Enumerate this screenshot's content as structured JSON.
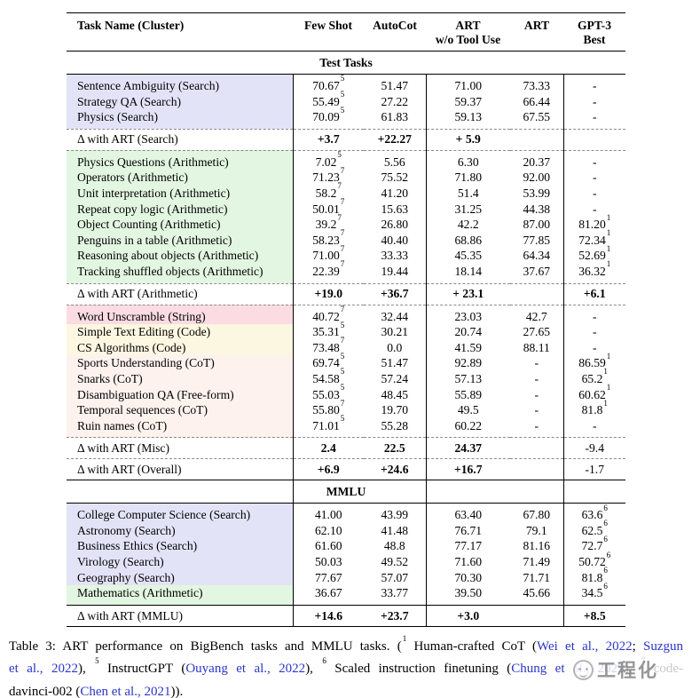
{
  "colors": {
    "search_highlight": "#e3e3f8",
    "arith_highlight": "#e2f6e1",
    "string_highlight": "#fbdce2",
    "code_highlight": "#fcf7e1",
    "cot_highlight": "#fdf2ee",
    "link": "#2b35c8",
    "dash_rule": "#8a8a8a"
  },
  "header": {
    "columns": [
      {
        "label": "Task Name (Cluster)"
      },
      {
        "label": "Few Shot"
      },
      {
        "label": "AutoCot"
      },
      {
        "label": "ART",
        "label2": "w/o Tool Use"
      },
      {
        "label": "ART"
      },
      {
        "label": "GPT-3",
        "label2": "Best"
      }
    ]
  },
  "sections": [
    {
      "type": "band",
      "label": "Test Tasks",
      "dividers": false,
      "rule_above": "solid"
    },
    {
      "type": "rows",
      "rule_above": "solid",
      "rows": [
        {
          "task": "Sentence Ambiguity (Search)",
          "bg": "search",
          "cells": [
            {
              "v": "70.67",
              "sup": "5"
            },
            {
              "v": "51.47"
            },
            {
              "v": "71.00"
            },
            {
              "v": "73.33"
            },
            {
              "v": "-"
            }
          ]
        },
        {
          "task": "Strategy QA (Search)",
          "bg": "search",
          "cells": [
            {
              "v": "55.49",
              "sup": "5"
            },
            {
              "v": "27.22"
            },
            {
              "v": "59.37"
            },
            {
              "v": "66.44"
            },
            {
              "v": "-"
            }
          ]
        },
        {
          "task": "Physics (Search)",
          "bg": "search",
          "cells": [
            {
              "v": "70.09",
              "sup": "5"
            },
            {
              "v": "61.83"
            },
            {
              "v": "59.13"
            },
            {
              "v": "67.55"
            },
            {
              "v": "-"
            }
          ]
        }
      ]
    },
    {
      "type": "delta",
      "label": "Δ with ART (Search)",
      "rule_above": "dash",
      "cells": [
        {
          "v": "+3.7"
        },
        {
          "v": "+22.27"
        },
        {
          "v": "+ 5.9"
        },
        {
          "v": ""
        },
        {
          "v": ""
        }
      ]
    },
    {
      "type": "rows",
      "rule_above": "dash",
      "rows": [
        {
          "task": "Physics Questions (Arithmetic)",
          "bg": "arith",
          "cells": [
            {
              "v": "7.02",
              "sup": "5"
            },
            {
              "v": "5.56"
            },
            {
              "v": "6.30"
            },
            {
              "v": "20.37"
            },
            {
              "v": "-"
            }
          ]
        },
        {
          "task": "Operators (Arithmetic)",
          "bg": "arith",
          "cells": [
            {
              "v": "71.23",
              "sup": "7"
            },
            {
              "v": "75.52"
            },
            {
              "v": "71.80"
            },
            {
              "v": "92.00"
            },
            {
              "v": "-"
            }
          ]
        },
        {
          "task": "Unit interpretation (Arithmetic)",
          "bg": "arith",
          "cells": [
            {
              "v": "58.2",
              "sup": "7"
            },
            {
              "v": "41.20"
            },
            {
              "v": "51.4"
            },
            {
              "v": "53.99"
            },
            {
              "v": "-"
            }
          ]
        },
        {
          "task": "Repeat copy logic (Arithmetic)",
          "bg": "arith",
          "cells": [
            {
              "v": "50.01",
              "sup": "7"
            },
            {
              "v": "15.63"
            },
            {
              "v": "31.25"
            },
            {
              "v": "44.38"
            },
            {
              "v": "-"
            }
          ]
        },
        {
          "task": "Object Counting (Arithmetic)",
          "bg": "arith",
          "cells": [
            {
              "v": "39.2",
              "sup": "7"
            },
            {
              "v": "26.80"
            },
            {
              "v": "42.2"
            },
            {
              "v": "87.00"
            },
            {
              "v": "81.20",
              "sup": "1"
            }
          ]
        },
        {
          "task": "Penguins in a table (Arithmetic)",
          "bg": "arith",
          "cells": [
            {
              "v": "58.23",
              "sup": "7"
            },
            {
              "v": "40.40"
            },
            {
              "v": "68.86"
            },
            {
              "v": "77.85"
            },
            {
              "v": "72.34",
              "sup": "1"
            }
          ]
        },
        {
          "task": "Reasoning about objects (Arithmetic)",
          "bg": "arith",
          "cells": [
            {
              "v": "71.00",
              "sup": "7"
            },
            {
              "v": "33.33"
            },
            {
              "v": "45.35"
            },
            {
              "v": "64.34"
            },
            {
              "v": "52.69",
              "sup": "1"
            }
          ]
        },
        {
          "task": "Tracking shuffled objects (Arithmetic)",
          "bg": "arith",
          "cells": [
            {
              "v": "22.39",
              "sup": "7"
            },
            {
              "v": "19.44"
            },
            {
              "v": "18.14"
            },
            {
              "v": "37.67"
            },
            {
              "v": "36.32",
              "sup": "1"
            }
          ]
        }
      ]
    },
    {
      "type": "delta",
      "label": "Δ with ART (Arithmetic)",
      "rule_above": "dash",
      "cells": [
        {
          "v": "+19.0"
        },
        {
          "v": "+36.7"
        },
        {
          "v": "+ 23.1"
        },
        {
          "v": ""
        },
        {
          "v": "+6.1"
        }
      ]
    },
    {
      "type": "rows",
      "rule_above": "dash",
      "rows": [
        {
          "task": "Word Unscramble (String)",
          "bg": "string",
          "cells": [
            {
              "v": "40.72",
              "sup": "7"
            },
            {
              "v": "32.44"
            },
            {
              "v": "23.03"
            },
            {
              "v": "42.7"
            },
            {
              "v": "-"
            }
          ]
        },
        {
          "task": "Simple Text Editing (Code)",
          "bg": "code",
          "cells": [
            {
              "v": "35.31",
              "sup": "5"
            },
            {
              "v": "30.21"
            },
            {
              "v": "20.74"
            },
            {
              "v": "27.65"
            },
            {
              "v": "-"
            }
          ]
        },
        {
          "task": "CS Algorithms (Code)",
          "bg": "code",
          "cells": [
            {
              "v": "73.48",
              "sup": "7"
            },
            {
              "v": "0.0"
            },
            {
              "v": "41.59"
            },
            {
              "v": "88.11"
            },
            {
              "v": "-"
            }
          ]
        },
        {
          "task": "Sports Understanding (CoT)",
          "bg": "cot",
          "cells": [
            {
              "v": "69.74",
              "sup": "5"
            },
            {
              "v": "51.47"
            },
            {
              "v": "92.89"
            },
            {
              "v": "-"
            },
            {
              "v": "86.59",
              "sup": "1"
            }
          ]
        },
        {
          "task": "Snarks (CoT)",
          "bg": "cot",
          "cells": [
            {
              "v": "54.58",
              "sup": "5"
            },
            {
              "v": "57.24"
            },
            {
              "v": "57.13"
            },
            {
              "v": "-"
            },
            {
              "v": "65.2",
              "sup": "1"
            }
          ]
        },
        {
          "task": "Disambiguation QA (Free-form)",
          "bg": "cot",
          "cells": [
            {
              "v": "55.03",
              "sup": "5"
            },
            {
              "v": "48.45"
            },
            {
              "v": "55.89"
            },
            {
              "v": "-"
            },
            {
              "v": "60.62",
              "sup": "1"
            }
          ]
        },
        {
          "task": "Temporal sequences (CoT)",
          "bg": "cot",
          "cells": [
            {
              "v": "55.80",
              "sup": "7"
            },
            {
              "v": "19.70"
            },
            {
              "v": "49.5"
            },
            {
              "v": "-"
            },
            {
              "v": "81.8",
              "sup": "1"
            }
          ]
        },
        {
          "task": "Ruin names (CoT)",
          "bg": "cot",
          "cells": [
            {
              "v": "71.01",
              "sup": "5"
            },
            {
              "v": "55.28"
            },
            {
              "v": "60.22"
            },
            {
              "v": "-"
            },
            {
              "v": "-"
            }
          ]
        }
      ]
    },
    {
      "type": "delta",
      "label": "Δ with ART (Misc)",
      "rule_above": "dash",
      "cells": [
        {
          "v": "2.4"
        },
        {
          "v": "22.5"
        },
        {
          "v": "24.37"
        },
        {
          "v": ""
        },
        {
          "v": "-9.4",
          "bold": false
        }
      ]
    },
    {
      "type": "delta",
      "label": "Δ with ART (Overall)",
      "rule_above": "dash",
      "cells": [
        {
          "v": "+6.9"
        },
        {
          "v": "+24.6"
        },
        {
          "v": "+16.7"
        },
        {
          "v": ""
        },
        {
          "v": "-1.7",
          "bold": false
        }
      ]
    },
    {
      "type": "band",
      "label": "MMLU",
      "dividers": true,
      "rule_above": "solid"
    },
    {
      "type": "rows",
      "rule_above": "solid",
      "rows": [
        {
          "task": "College Computer Science (Search)",
          "bg": "search",
          "cells": [
            {
              "v": "41.00"
            },
            {
              "v": "43.99"
            },
            {
              "v": "63.40"
            },
            {
              "v": "67.80"
            },
            {
              "v": "63.6",
              "sup": "6"
            }
          ]
        },
        {
          "task": "Astronomy (Search)",
          "bg": "search",
          "cells": [
            {
              "v": "62.10"
            },
            {
              "v": "41.48"
            },
            {
              "v": "76.71"
            },
            {
              "v": "79.1"
            },
            {
              "v": "62.5",
              "sup": "6"
            }
          ]
        },
        {
          "task": "Business Ethics (Search)",
          "bg": "search",
          "cells": [
            {
              "v": "61.60"
            },
            {
              "v": "48.8"
            },
            {
              "v": "77.17"
            },
            {
              "v": "81.16"
            },
            {
              "v": "72.7",
              "sup": "6"
            }
          ]
        },
        {
          "task": "Virology (Search)",
          "bg": "search",
          "cells": [
            {
              "v": "50.03"
            },
            {
              "v": "49.52"
            },
            {
              "v": "71.60"
            },
            {
              "v": "71.49"
            },
            {
              "v": "50.72",
              "sup": "6"
            }
          ]
        },
        {
          "task": "Geography (Search)",
          "bg": "search",
          "cells": [
            {
              "v": "77.67"
            },
            {
              "v": "57.07"
            },
            {
              "v": "70.30"
            },
            {
              "v": "71.71"
            },
            {
              "v": "81.8",
              "sup": "6"
            }
          ]
        },
        {
          "task": "Mathematics (Arithmetic)",
          "bg": "arith",
          "cells": [
            {
              "v": "36.67"
            },
            {
              "v": "33.77"
            },
            {
              "v": "39.50"
            },
            {
              "v": "45.66"
            },
            {
              "v": "34.5",
              "sup": "6"
            }
          ]
        }
      ]
    },
    {
      "type": "delta",
      "label": "Δ with ART (MMLU)",
      "rule_above": "solid",
      "cells": [
        {
          "v": "+14.6"
        },
        {
          "v": "+23.7"
        },
        {
          "v": "+3.0"
        },
        {
          "v": ""
        },
        {
          "v": "+8.5"
        }
      ]
    }
  ],
  "caption": {
    "lines": [
      [
        {
          "t": "Table 3: ART performance on BigBench tasks and MMLU tasks. ("
        },
        {
          "t": "1",
          "sup": true
        },
        {
          "t": " Human-crafted CoT ("
        },
        {
          "t": "Wei et al., 2022",
          "link": true
        },
        {
          "t": "; "
        },
        {
          "t": "Suzgun",
          "link": true
        }
      ],
      [
        {
          "t": "et al., 2022",
          "link": true
        },
        {
          "t": "), "
        },
        {
          "t": "5",
          "sup": true
        },
        {
          "t": " InstructGPT ("
        },
        {
          "t": "Ouyang et al., 2022",
          "link": true
        },
        {
          "t": "), "
        },
        {
          "t": "6",
          "sup": true
        },
        {
          "t": " Scaled instruction finetuning ("
        },
        {
          "t": "Chung et al., 2022",
          "link": true
        },
        {
          "t": "), "
        },
        {
          "t": "7",
          "sup": true
        },
        {
          "t": " code-"
        }
      ],
      [
        {
          "t": "davinci-002 ("
        },
        {
          "t": "Chen et al., 2021",
          "link": true
        },
        {
          "t": "))."
        }
      ]
    ]
  },
  "watermark": {
    "text": "工程化"
  }
}
